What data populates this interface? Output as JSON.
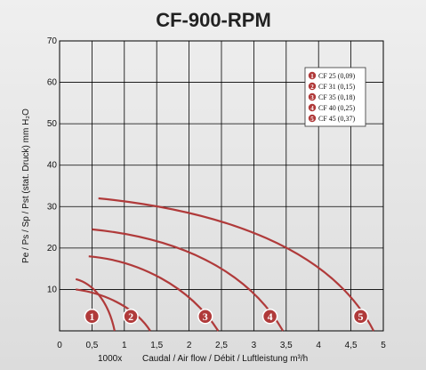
{
  "chart_data": {
    "type": "line",
    "title": "CF-900-RPM",
    "xlabel": "Caudal / Air flow / Débit / Luftleistung m³/h",
    "x_multiplier": "1000x",
    "ylabel": "Pe / Ps / Sp / Pst (stat. Druck) mm H₂O",
    "xlim": [
      0,
      5
    ],
    "ylim": [
      0,
      70
    ],
    "x_ticks": [
      "0",
      "0,5",
      "1",
      "1,5",
      "2",
      "2,5",
      "3",
      "3,5",
      "4",
      "4,5",
      "5"
    ],
    "y_ticks": [
      "10",
      "20",
      "30",
      "40",
      "50",
      "60",
      "70"
    ],
    "grid": true,
    "legend_position": "top-right",
    "line_color": "#b03a3a",
    "grid_color": "#000000",
    "series": [
      {
        "name": "CF 25 (0,09)",
        "marker": "1",
        "x": [
          0.25,
          0.5,
          0.75,
          0.85
        ],
        "y": [
          12.5,
          11.5,
          7.5,
          0
        ],
        "marker_at": [
          0.5,
          3.5
        ]
      },
      {
        "name": "CF 31 (0,15)",
        "marker": "2",
        "x": [
          0.25,
          0.75,
          1.2,
          1.4
        ],
        "y": [
          10.0,
          9.0,
          5.0,
          0
        ],
        "marker_at": [
          1.1,
          3.5
        ]
      },
      {
        "name": "CF 35 (0,18)",
        "marker": "3",
        "x": [
          0.45,
          1.2,
          2.0,
          2.45
        ],
        "y": [
          18.0,
          17.0,
          11.0,
          0
        ],
        "marker_at": [
          2.25,
          3.5
        ]
      },
      {
        "name": "CF 40 (0,25)",
        "marker": "4",
        "x": [
          0.5,
          1.8,
          2.9,
          3.45
        ],
        "y": [
          24.5,
          22.5,
          15.0,
          0
        ],
        "marker_at": [
          3.25,
          3.5
        ]
      },
      {
        "name": "CF 45 (0,37)",
        "marker": "5",
        "x": [
          0.6,
          2.5,
          4.2,
          4.85
        ],
        "y": [
          32.0,
          29.0,
          20.0,
          0
        ],
        "marker_at": [
          4.65,
          3.5
        ]
      }
    ]
  }
}
